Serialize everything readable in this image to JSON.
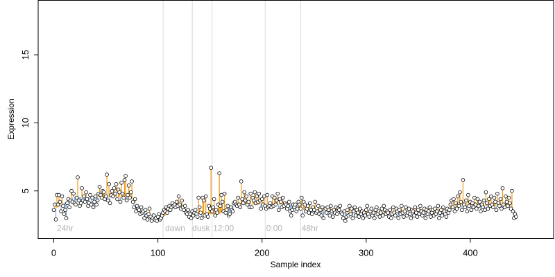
{
  "chart_data": {
    "type": "scatter",
    "title": "",
    "xlabel": "Sample index",
    "ylabel": "Expression",
    "xlim": [
      -15,
      480
    ],
    "ylim": [
      1.5,
      19
    ],
    "x_ticks": [
      0,
      100,
      200,
      300,
      400
    ],
    "y_ticks": [
      5,
      10,
      15
    ],
    "grid": false,
    "baseline_color": "#8fb1dc",
    "above_color": "#f0a020",
    "point_stroke": "#000000",
    "point_fill": "#ffffff",
    "separators": [
      {
        "x": 105,
        "label": ""
      },
      {
        "x": 133,
        "label": ""
      },
      {
        "x": 152,
        "label": ""
      },
      {
        "x": 203,
        "label": ""
      },
      {
        "x": 237,
        "label": ""
      }
    ],
    "annotations": [
      {
        "x": 3,
        "y": 2.05,
        "text": "24hr"
      },
      {
        "x": 107,
        "y": 2.05,
        "text": "dawn"
      },
      {
        "x": 133,
        "y": 2.05,
        "text": "dusk"
      },
      {
        "x": 153,
        "y": 2.05,
        "text": "12:00"
      },
      {
        "x": 204,
        "y": 2.05,
        "text": "0:00"
      },
      {
        "x": 238,
        "y": 2.05,
        "text": "48hr"
      }
    ],
    "series": [
      {
        "values": [
          3.6,
          4.0,
          2.9,
          4.7,
          4.0,
          4.7,
          4.2,
          3.5,
          4.6,
          3.9,
          3.3,
          3.6,
          3.0,
          4.1,
          4.4,
          3.8,
          4.3,
          5.0,
          4.2,
          4.8,
          4.1,
          4.0,
          4.5,
          6.0,
          4.3,
          3.9,
          4.1,
          5.2,
          4.3,
          4.6,
          4.2,
          4.9,
          4.4,
          3.9,
          4.1,
          4.7,
          4.0,
          4.5,
          3.8,
          4.2,
          4.6,
          4.0,
          4.3,
          4.8,
          5.3,
          4.7,
          4.5,
          5.0,
          4.9,
          4.4,
          4.6,
          6.2,
          4.3,
          5.5,
          4.1,
          4.7,
          5.0,
          4.6,
          5.2,
          4.8,
          5.5,
          4.4,
          5.1,
          4.9,
          4.2,
          5.6,
          4.8,
          4.5,
          5.8,
          6.1,
          4.3,
          4.7,
          5.4,
          4.5,
          4.9,
          5.7,
          4.2,
          3.8,
          4.4,
          3.5,
          3.9,
          3.7,
          3.6,
          3.3,
          3.8,
          3.4,
          3.5,
          3.0,
          3.6,
          3.2,
          2.9,
          3.3,
          3.7,
          3.1,
          2.8,
          3.0,
          3.2,
          2.9,
          3.0,
          2.8,
          3.1,
          3.3,
          2.9,
          3.0,
          3.2,
          3.4,
          3.6,
          3.5,
          3.8,
          3.4,
          3.7,
          3.9,
          3.6,
          3.8,
          4.1,
          3.9,
          4.0,
          3.8,
          4.2,
          3.9,
          4.6,
          4.0,
          3.7,
          4.3,
          3.8,
          3.6,
          3.9,
          3.4,
          3.3,
          3.6,
          3.1,
          3.3,
          3.0,
          3.5,
          3.2,
          3.4,
          3.6,
          3.3,
          3.1,
          4.5,
          3.8,
          3.4,
          3.0,
          4.5,
          4.3,
          3.2,
          4.6,
          3.3,
          3.1,
          3.9,
          3.7,
          6.7,
          3.5,
          3.8,
          4.4,
          3.2,
          3.6,
          3.4,
          4.0,
          6.3,
          3.9,
          4.7,
          4.2,
          3.5,
          4.8,
          3.4,
          3.6,
          3.9,
          3.2,
          3.3,
          3.8,
          3.6,
          3.5,
          4.1,
          4.2,
          4.0,
          3.9,
          4.5,
          4.0,
          3.8,
          5.7,
          4.4,
          4.1,
          4.9,
          4.3,
          4.6,
          4.0,
          4.2,
          3.8,
          4.8,
          3.8,
          4.5,
          4.3,
          4.9,
          4.1,
          4.6,
          4.2,
          4.8,
          4.3,
          3.7,
          4.4,
          4.0,
          4.6,
          3.9,
          3.7,
          4.7,
          3.8,
          3.9,
          4.1,
          3.8,
          4.6,
          3.9,
          4.5,
          4.0,
          4.3,
          4.8,
          3.6,
          4.4,
          4.2,
          3.8,
          4.5,
          3.9,
          4.1,
          4.0,
          3.7,
          3.9,
          4.2,
          3.5,
          3.2,
          3.6,
          4.0,
          3.8,
          4.0,
          3.5,
          3.7,
          4.2,
          4.0,
          3.7,
          4.5,
          3.2,
          4.2,
          4.0,
          3.5,
          3.7,
          3.9,
          3.4,
          4.1,
          3.6,
          3.3,
          3.8,
          3.6,
          4.2,
          3.4,
          3.5,
          3.9,
          3.3,
          3.6,
          3.2,
          3.8,
          3.0,
          3.5,
          3.7,
          3.4,
          3.8,
          3.6,
          3.2,
          3.9,
          3.5,
          3.1,
          3.6,
          3.4,
          3.8,
          3.3,
          3.7,
          3.6,
          3.9,
          3.4,
          3.3,
          3.0,
          3.5,
          2.8,
          3.1,
          3.6,
          3.2,
          3.9,
          3.3,
          3.7,
          3.0,
          3.5,
          3.8,
          3.2,
          3.6,
          3.4,
          3.1,
          3.7,
          3.3,
          3.5,
          3.0,
          3.4,
          3.2,
          3.6,
          3.9,
          3.3,
          3.1,
          3.5,
          3.7,
          3.2,
          3.4,
          3.0,
          3.6,
          3.8,
          3.3,
          3.5,
          3.1,
          3.4,
          3.7,
          3.2,
          3.9,
          3.6,
          3.3,
          3.5,
          3.4,
          3.1,
          3.6,
          3.0,
          3.3,
          3.8,
          3.4,
          3.2,
          3.7,
          3.5,
          3.0,
          3.6,
          3.3,
          3.9,
          3.4,
          3.1,
          3.5,
          3.8,
          3.2,
          3.4,
          3.7,
          3.3,
          3.0,
          3.6,
          3.5,
          3.2,
          3.8,
          3.4,
          3.1,
          3.6,
          3.3,
          3.9,
          3.5,
          3.2,
          3.4,
          3.7,
          3.0,
          3.6,
          3.3,
          3.5,
          3.8,
          3.1,
          3.4,
          3.6,
          3.2,
          3.7,
          3.3,
          3.5,
          3.9,
          3.0,
          3.4,
          3.6,
          3.2,
          3.8,
          3.5,
          3.3,
          3.1,
          3.7,
          3.4,
          3.6,
          4.0,
          4.3,
          3.8,
          4.4,
          3.5,
          4.1,
          3.7,
          4.6,
          3.9,
          4.9,
          4.2,
          3.6,
          5.8,
          4.0,
          3.8,
          4.3,
          3.5,
          4.7,
          3.9,
          4.2,
          3.6,
          4.1,
          3.8,
          4.5,
          4.0,
          3.7,
          4.4,
          3.9,
          4.2,
          3.5,
          4.0,
          3.8,
          4.3,
          3.6,
          4.9,
          4.1,
          3.7,
          4.4,
          3.9,
          4.6,
          4.0,
          3.8,
          4.5,
          4.2,
          3.6,
          4.8,
          4.1,
          3.9,
          4.4,
          3.7,
          5.2,
          4.0,
          3.8,
          4.6,
          4.2,
          3.9,
          4.5,
          4.1,
          3.7,
          5.0,
          3.5,
          3.0,
          3.3,
          3.1
        ]
      },
      {
        "values": [
          3.55,
          3.65,
          3.7,
          3.75,
          3.8,
          3.85,
          3.9,
          3.95,
          4.0,
          4.05,
          4.1,
          4.15,
          4.2,
          4.25,
          4.3,
          4.35,
          4.4,
          4.45,
          4.5,
          4.55,
          4.55,
          4.55,
          4.55,
          4.55,
          4.55,
          4.55,
          4.55,
          4.55,
          4.55,
          4.55,
          4.55,
          4.55,
          4.55,
          4.55,
          4.55,
          4.55,
          4.55,
          4.55,
          4.55,
          4.55,
          4.55,
          4.55,
          4.55,
          4.55,
          4.55,
          4.55,
          4.55,
          4.55,
          4.55,
          4.55,
          4.55,
          4.55,
          4.55,
          4.55,
          4.55,
          4.55,
          4.55,
          4.55,
          4.55,
          4.55,
          4.55,
          4.55,
          4.55,
          4.55,
          4.55,
          4.55,
          4.55,
          4.55,
          4.55,
          4.55,
          4.55,
          4.55,
          4.55,
          4.5,
          4.45,
          4.4,
          4.3,
          4.2,
          4.1,
          4.0,
          3.9,
          3.8,
          3.75,
          3.7,
          3.65,
          3.6,
          3.55,
          3.5,
          3.45,
          3.4,
          3.35,
          3.3,
          3.25,
          3.2,
          3.15,
          3.1,
          3.05,
          3.0,
          3.0,
          3.0,
          3.0,
          3.0,
          3.0,
          3.0,
          3.05,
          3.1,
          3.15,
          3.2,
          3.3,
          3.4,
          3.5,
          3.6,
          3.7,
          3.75,
          3.8,
          3.85,
          3.9,
          3.9,
          3.9,
          3.9,
          3.9,
          3.9,
          3.85,
          3.8,
          3.75,
          3.7,
          3.65,
          3.6,
          3.55,
          3.5,
          3.45,
          3.4,
          3.35,
          3.3,
          3.3,
          3.3,
          3.3,
          3.3,
          3.3,
          3.3,
          3.3,
          3.3,
          3.3,
          3.3,
          3.3,
          3.3,
          3.3,
          3.3,
          3.3,
          3.3,
          3.3,
          3.3,
          3.3,
          3.3,
          3.3,
          3.3,
          3.3,
          3.3,
          3.3,
          3.3,
          3.35,
          3.4,
          3.45,
          3.5,
          3.55,
          3.6,
          3.65,
          3.7,
          3.75,
          3.8,
          3.85,
          3.9,
          3.95,
          4.0,
          4.0,
          4.0,
          4.0,
          4.0,
          4.0,
          4.0,
          4.0,
          4.0,
          4.0,
          4.0,
          4.0,
          4.0,
          4.0,
          4.0,
          4.0,
          4.0,
          4.0,
          4.0,
          4.0,
          4.0,
          4.0,
          4.0,
          4.0,
          4.0,
          4.0,
          4.0,
          4.0,
          4.0,
          4.0,
          4.0,
          4.0,
          4.0,
          4.0,
          4.0,
          4.0,
          4.0,
          4.0,
          4.0,
          4.0,
          4.0,
          4.0,
          4.0,
          4.0,
          4.0,
          4.0,
          4.0,
          4.0,
          4.0,
          4.0,
          4.0,
          4.0,
          4.0,
          4.0,
          4.0,
          4.0,
          4.0,
          4.0,
          4.0,
          4.0,
          3.9,
          3.85,
          3.8,
          3.75,
          3.7,
          3.65,
          3.6,
          3.6,
          3.6,
          3.6,
          3.6,
          3.6,
          3.6,
          3.6,
          3.6,
          3.6,
          3.6,
          3.6,
          3.6,
          3.55,
          3.5,
          3.5,
          3.5,
          3.5,
          3.5,
          3.5,
          3.5,
          3.5,
          3.5,
          3.5,
          3.5,
          3.5,
          3.5,
          3.5,
          3.5,
          3.5,
          3.5,
          3.5,
          3.5,
          3.5,
          3.5,
          3.5,
          3.5,
          3.5,
          3.5,
          3.5,
          3.5,
          3.4,
          3.4,
          3.4,
          3.4,
          3.4,
          3.4,
          3.4,
          3.4,
          3.4,
          3.4,
          3.4,
          3.4,
          3.4,
          3.4,
          3.4,
          3.4,
          3.4,
          3.4,
          3.4,
          3.4,
          3.4,
          3.4,
          3.4,
          3.4,
          3.4,
          3.4,
          3.4,
          3.4,
          3.4,
          3.4,
          3.4,
          3.4,
          3.4,
          3.4,
          3.4,
          3.4,
          3.4,
          3.4,
          3.4,
          3.4,
          3.4,
          3.4,
          3.4,
          3.4,
          3.4,
          3.4,
          3.4,
          3.4,
          3.4,
          3.4,
          3.4,
          3.4,
          3.4,
          3.4,
          3.4,
          3.4,
          3.4,
          3.4,
          3.4,
          3.4,
          3.4,
          3.4,
          3.4,
          3.4,
          3.4,
          3.4,
          3.4,
          3.4,
          3.4,
          3.4,
          3.4,
          3.4,
          3.4,
          3.4,
          3.4,
          3.4,
          3.4,
          3.4,
          3.4,
          3.4,
          3.4,
          3.4,
          3.4,
          3.4,
          3.4,
          3.4,
          3.4,
          3.4,
          3.4,
          3.4,
          3.4,
          3.4,
          3.4,
          3.4,
          3.4,
          3.4,
          3.4,
          3.4,
          3.45,
          3.5,
          3.55,
          3.6,
          3.65,
          3.7,
          3.75,
          3.8,
          3.85,
          3.9,
          3.9,
          3.9,
          3.9,
          3.9,
          3.9,
          3.9,
          3.9,
          3.9,
          3.9,
          3.9,
          3.9,
          3.9,
          3.9,
          3.9,
          3.9,
          3.9,
          3.9,
          3.9,
          3.9,
          3.9,
          3.9,
          3.9,
          3.9,
          3.9,
          3.9,
          3.9,
          3.9,
          3.9,
          3.9,
          3.9,
          3.9,
          3.9,
          3.9,
          3.9,
          3.9,
          3.9,
          3.9,
          3.9,
          3.9,
          3.9,
          3.9,
          3.9,
          3.9,
          3.9,
          3.9,
          3.9,
          3.9,
          3.9,
          3.9,
          3.9,
          3.9,
          3.85,
          3.8,
          3.7,
          3.6,
          3.5,
          3.4
        ]
      }
    ]
  }
}
